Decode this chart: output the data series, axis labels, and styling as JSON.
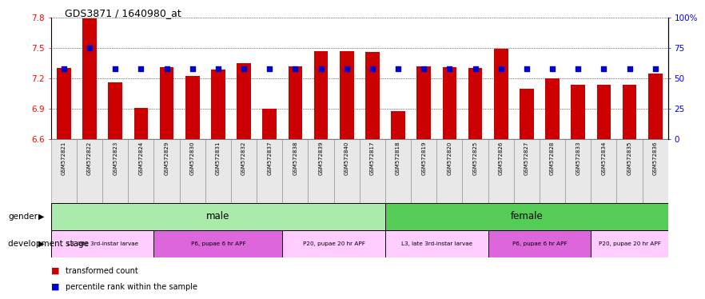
{
  "title": "GDS3871 / 1640980_at",
  "samples": [
    "GSM572821",
    "GSM572822",
    "GSM572823",
    "GSM572824",
    "GSM572829",
    "GSM572830",
    "GSM572831",
    "GSM572832",
    "GSM572837",
    "GSM572838",
    "GSM572839",
    "GSM572840",
    "GSM572817",
    "GSM572818",
    "GSM572819",
    "GSM572820",
    "GSM572825",
    "GSM572826",
    "GSM572827",
    "GSM572828",
    "GSM572833",
    "GSM572834",
    "GSM572835",
    "GSM572836"
  ],
  "transformed_count": [
    7.3,
    7.79,
    7.16,
    6.91,
    7.31,
    7.22,
    7.29,
    7.35,
    6.9,
    7.32,
    7.47,
    7.47,
    7.46,
    6.88,
    7.32,
    7.31,
    7.3,
    7.49,
    7.1,
    7.2,
    7.14,
    7.14,
    7.14,
    7.25
  ],
  "percentile_rank": [
    58,
    75,
    58,
    58,
    58,
    58,
    58,
    58,
    58,
    58,
    58,
    58,
    58,
    58,
    58,
    58,
    58,
    58,
    58,
    58,
    58,
    58,
    58,
    58
  ],
  "baseline": 6.6,
  "ylim_left": [
    6.6,
    7.8
  ],
  "ylim_right": [
    0,
    100
  ],
  "yticks_left": [
    6.6,
    6.9,
    7.2,
    7.5,
    7.8
  ],
  "yticks_right": [
    0,
    25,
    50,
    75,
    100
  ],
  "bar_color": "#cc0000",
  "dot_color": "#0000cc",
  "male_count": 13,
  "female_count": 11,
  "male_color": "#aaeaaa",
  "female_color": "#55cc55",
  "dev_stages": [
    {
      "label": "L3, late 3rd-instar larvae",
      "count": 4,
      "color": "#ffccff"
    },
    {
      "label": "P6, pupae 6 hr APF",
      "count": 5,
      "color": "#dd66dd"
    },
    {
      "label": "P20, pupae 20 hr APF",
      "count": 4,
      "color": "#ffccff"
    },
    {
      "label": "L3, late 3rd-instar larvae",
      "count": 4,
      "color": "#ffccff"
    },
    {
      "label": "P6, pupae 6 hr APF",
      "count": 4,
      "color": "#dd66dd"
    },
    {
      "label": "P20, pupae 20 hr APF",
      "count": 3,
      "color": "#ffccff"
    }
  ],
  "legend_bar_label": "transformed count",
  "legend_dot_label": "percentile rank within the sample",
  "gender_label": "gender",
  "devstage_label": "development stage"
}
